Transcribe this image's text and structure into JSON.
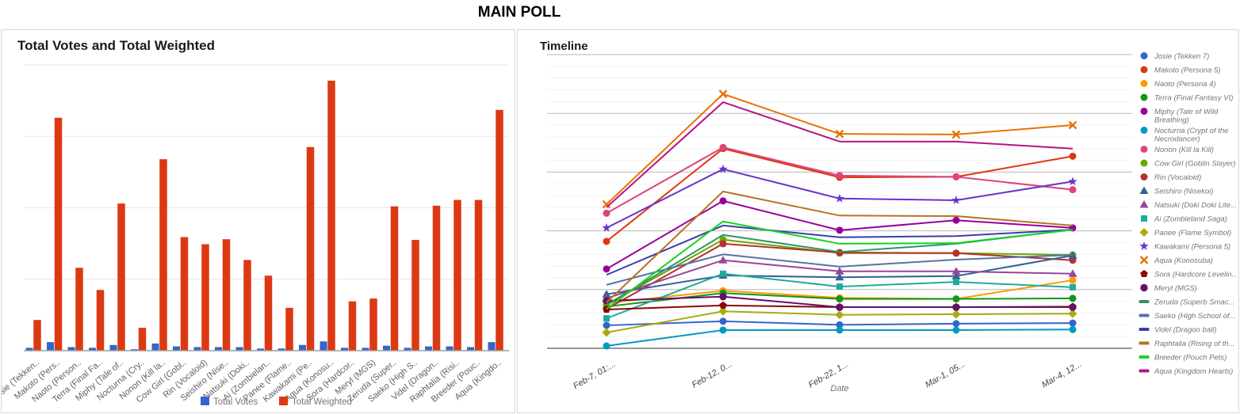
{
  "page_title": "MAIN POLL",
  "chart_data": [
    {
      "type": "bar",
      "title": "Total Votes and Total Weighted",
      "xlabel": "",
      "ylabel": "",
      "ylim": [
        0,
        4
      ],
      "y_axis_tick_labels": "none (unlabeled gridlines)",
      "grid": true,
      "legend_position": "bottom",
      "categories": [
        "Josie (Tekken..",
        "Makoto (Pers..",
        "Naoto (Person..",
        "Terra (Final Fa..",
        "Miphy (Tale of..",
        "Nocturna (Cry..",
        "Nonon (Kill la..",
        "Cow Girl (Gobl..",
        "Rin (Vocaloid)",
        "Seishiro (Nise..",
        "Natsuki (Doki..",
        "Ai (Zombielan..",
        "Panee (Flame..",
        "Kawakami (Pe..",
        "Aqua (Konosu..",
        "Sora (Hardcor..",
        "Meryl (MGS)",
        "Zeruda (Super..",
        "Saeko (High S..",
        "Videl (Dragon..",
        "Raphtalia (Risi..",
        "Breeder (Pouc..",
        "Aqua (Kingdo.."
      ],
      "series": [
        {
          "name": "Total Votes",
          "color": "#3366CC",
          "values": [
            0.04,
            0.12,
            0.05,
            0.04,
            0.08,
            0.02,
            0.1,
            0.06,
            0.05,
            0.05,
            0.05,
            0.03,
            0.03,
            0.08,
            0.13,
            0.04,
            0.04,
            0.07,
            0.04,
            0.06,
            0.06,
            0.05,
            0.12
          ]
        },
        {
          "name": "Total Weighted",
          "color": "#DC3912",
          "values": [
            0.43,
            3.26,
            1.16,
            0.85,
            2.06,
            0.32,
            2.68,
            1.59,
            1.49,
            1.56,
            1.27,
            1.05,
            0.6,
            2.85,
            3.78,
            0.69,
            0.73,
            2.02,
            1.55,
            2.03,
            2.11,
            2.11,
            3.37
          ]
        }
      ]
    },
    {
      "type": "line",
      "title": "Timeline",
      "xlabel": "Date",
      "ylabel": "",
      "ylim": [
        0,
        5
      ],
      "y_axis_tick_labels": "none (unlabeled gridlines)",
      "grid": true,
      "legend_position": "right",
      "categories": [
        "Feb-7, 01:...",
        "Feb-12, 0...",
        "Feb-22, 1...",
        "Mar-1, 05...",
        "Mar-4, 12..."
      ],
      "series": [
        {
          "name": "Josie (Tekken 7)",
          "legend_lines": [
            "Josie (Tekken 7)"
          ],
          "color": "#3366CC",
          "marker": "circle",
          "values": [
            0.39,
            0.46,
            0.4,
            0.42,
            0.43
          ]
        },
        {
          "name": "Makoto (Persona 5)",
          "legend_lines": [
            "Makoto (Persona 5)"
          ],
          "color": "#DC3912",
          "marker": "circle",
          "values": [
            1.82,
            3.4,
            2.91,
            2.92,
            3.27
          ]
        },
        {
          "name": "Naoto (Persona 4)",
          "legend_lines": [
            "Naoto (Persona 4)"
          ],
          "color": "#FF9900",
          "marker": "circle",
          "values": [
            0.77,
            0.98,
            0.86,
            0.84,
            1.16
          ]
        },
        {
          "name": "Terra (Final Fantasy VI)",
          "legend_lines": [
            "Terra (Final Fantasy VI)"
          ],
          "color": "#109618",
          "marker": "circle",
          "values": [
            0.71,
            0.94,
            0.84,
            0.84,
            0.85
          ]
        },
        {
          "name": "Miphy (Tale of Wild Breathing)",
          "legend_lines": [
            "Miphy (Tale of Wild",
            "Breathing)"
          ],
          "color": "#990099",
          "marker": "circle",
          "values": [
            1.35,
            2.51,
            2.01,
            2.18,
            2.05
          ]
        },
        {
          "name": "Nocturna (Crypt of the Necrodancer)",
          "legend_lines": [
            "Nocturna (Crypt of the",
            "Necrodancer)"
          ],
          "color": "#0099C6",
          "marker": "circle",
          "values": [
            0.04,
            0.31,
            0.31,
            0.31,
            0.32
          ]
        },
        {
          "name": "Nonon (Kill la Kill)",
          "legend_lines": [
            "Nonon (Kill la Kill)"
          ],
          "color": "#DD4477",
          "marker": "circle",
          "values": [
            2.3,
            3.42,
            2.94,
            2.92,
            2.7
          ]
        },
        {
          "name": "Cow Girl (Goblin Slayer)",
          "legend_lines": [
            "Cow Girl (Goblin Slayer)"
          ],
          "color": "#66AA00",
          "marker": "circle",
          "values": [
            0.74,
            1.85,
            1.62,
            1.62,
            1.59
          ]
        },
        {
          "name": "Rin (Vocaloid)",
          "legend_lines": [
            "Rin (Vocaloid)"
          ],
          "color": "#B82E2E",
          "marker": "circle",
          "values": [
            0.67,
            1.78,
            1.63,
            1.62,
            1.5
          ]
        },
        {
          "name": "Seishiro (Nisekoi)",
          "legend_lines": [
            "Seishiro (Nisekoi)"
          ],
          "color": "#316395",
          "marker": "triangle",
          "values": [
            0.92,
            1.24,
            1.21,
            1.23,
            1.58
          ]
        },
        {
          "name": "Natsuki (Doki Doki Lite...",
          "legend_lines": [
            "Natsuki (Doki Doki Lite..."
          ],
          "color": "#994499",
          "marker": "triangle",
          "values": [
            0.85,
            1.5,
            1.31,
            1.31,
            1.27
          ]
        },
        {
          "name": "Ai (Zombieland Saga)",
          "legend_lines": [
            "Ai (Zombieland Saga)"
          ],
          "color": "#22AA99",
          "marker": "square",
          "values": [
            0.51,
            1.27,
            1.05,
            1.13,
            1.04
          ]
        },
        {
          "name": "Panee (Flame Symbol)",
          "legend_lines": [
            "Panee (Flame Symbol)"
          ],
          "color": "#AAAA11",
          "marker": "diamond",
          "values": [
            0.27,
            0.63,
            0.57,
            0.58,
            0.59
          ]
        },
        {
          "name": "Kawakami (Persona 5)",
          "legend_lines": [
            "Kawakami (Persona 5)"
          ],
          "color": "#6633CC",
          "marker": "star",
          "values": [
            2.05,
            3.05,
            2.55,
            2.52,
            2.84
          ]
        },
        {
          "name": "Aqua (Konosuba)",
          "legend_lines": [
            "Aqua (Konosuba)"
          ],
          "color": "#E67300",
          "marker": "x",
          "values": [
            2.45,
            4.33,
            3.65,
            3.64,
            3.8
          ]
        },
        {
          "name": "Sora (Hardcore Levelin...",
          "legend_lines": [
            "Sora (Hardcore Levelin..."
          ],
          "color": "#8B0707",
          "marker": "pentagon",
          "values": [
            0.66,
            0.73,
            0.7,
            0.7,
            0.71
          ]
        },
        {
          "name": "Meryl (MGS)",
          "legend_lines": [
            "Meryl (MGS)"
          ],
          "color": "#651067",
          "marker": "heptagon",
          "values": [
            0.81,
            0.88,
            0.7,
            0.7,
            0.7
          ]
        },
        {
          "name": "Zeruda (Superb Smac...",
          "legend_lines": [
            "Zeruda (Superb Smac..."
          ],
          "color": "#329262",
          "marker": "none",
          "values": [
            0.74,
            1.93,
            1.64,
            1.78,
            2.02
          ]
        },
        {
          "name": "Saeko (High School of...",
          "legend_lines": [
            "Saeko (High School of..."
          ],
          "color": "#5574A6",
          "marker": "none",
          "values": [
            1.08,
            1.6,
            1.39,
            1.51,
            1.59
          ]
        },
        {
          "name": "Videl (Dragon ball)",
          "legend_lines": [
            "Videl (Dragon ball)"
          ],
          "color": "#3B3EAC",
          "marker": "none",
          "values": [
            1.25,
            2.09,
            1.89,
            1.91,
            2.02
          ]
        },
        {
          "name": "Raphtalia (Rising of th...",
          "legend_lines": [
            "Raphtalia (Rising of th..."
          ],
          "color": "#B77322",
          "marker": "none",
          "values": [
            0.78,
            2.67,
            2.26,
            2.25,
            2.09
          ]
        },
        {
          "name": "Breeder (Pouch Pets)",
          "legend_lines": [
            "Breeder (Pouch Pets)"
          ],
          "color": "#16D620",
          "marker": "none",
          "values": [
            0.67,
            2.16,
            1.78,
            1.79,
            2.02
          ]
        },
        {
          "name": "Aqua (Kingdom Hearts)",
          "legend_lines": [
            "Aqua (Kingdom Hearts)"
          ],
          "color": "#B91383",
          "marker": "none",
          "values": [
            2.4,
            4.19,
            3.52,
            3.52,
            3.4
          ]
        }
      ]
    }
  ],
  "colors": {
    "panel_border": "#d9d9d9",
    "bar_gridline": "#e6e6e6",
    "bar_baseline": "#9e9e9e",
    "line_major_gridline": "#b7b7b7",
    "line_minor_gridline": "#f3f3f3",
    "line_baseline": "#757575",
    "tick_label": "#616161",
    "axis_title": "#757575",
    "legend_text": "#757575"
  }
}
